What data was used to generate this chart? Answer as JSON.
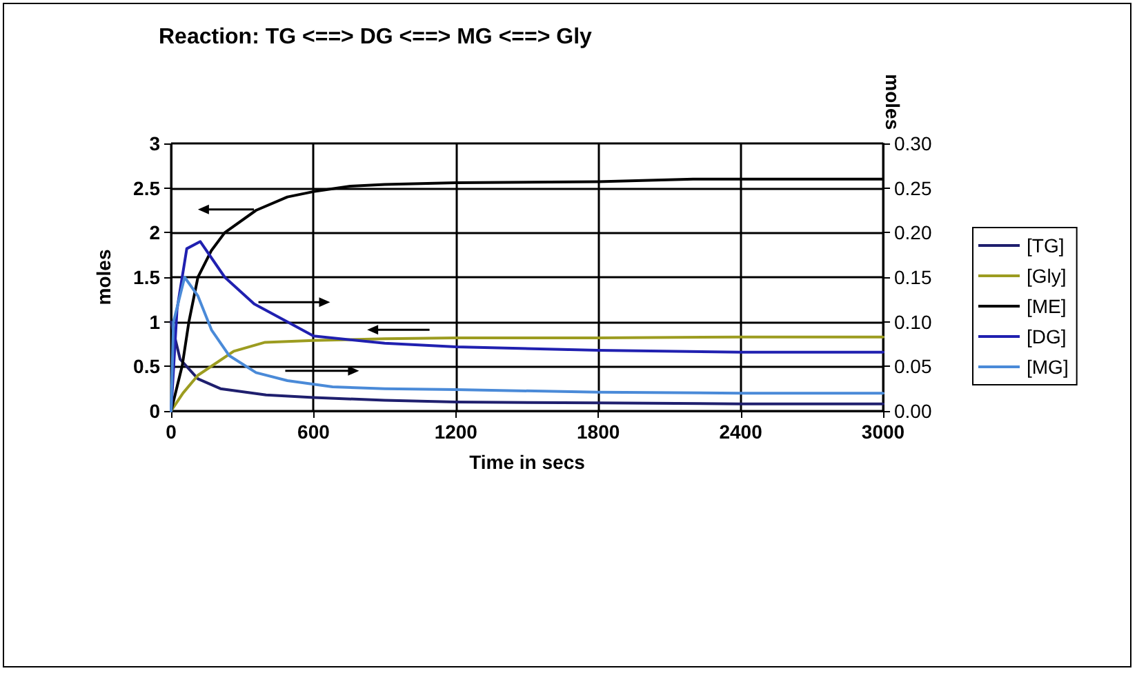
{
  "chart_data": {
    "type": "line",
    "title": "Reaction: TG <==> DG <==> MG <==> Gly",
    "xlabel": "Time in secs",
    "ylabel": "moles",
    "y2label": "moles",
    "xlim": [
      0,
      3000
    ],
    "xticks": [
      0,
      600,
      1200,
      1800,
      2400,
      3000
    ],
    "ylim": [
      0,
      3
    ],
    "yticks": [
      0,
      0.5,
      1,
      1.5,
      2,
      2.5,
      3
    ],
    "y2lim": [
      0,
      0.3
    ],
    "y2ticks": [
      {
        "value": 0,
        "label": "0.00"
      },
      {
        "value": 0.05,
        "label": "0.05"
      },
      {
        "value": 0.1,
        "label": "0.10"
      },
      {
        "value": 0.15,
        "label": "0.15"
      },
      {
        "value": 0.2,
        "label": "0.20"
      },
      {
        "value": 0.25,
        "label": "0.25"
      },
      {
        "value": 0.3,
        "label": "0.30"
      }
    ],
    "grid": true,
    "legend": "right",
    "marker": "none",
    "line_style": "solid",
    "series": [
      {
        "name": "[TG]",
        "color": "#1f1f6e",
        "x": [
          0,
          38,
          113,
          208,
          400,
          600,
          900,
          1200,
          1800,
          2400,
          3000
        ],
        "values": [
          1.0,
          0.58,
          0.36,
          0.25,
          0.18,
          0.15,
          0.12,
          0.1,
          0.09,
          0.08,
          0.08
        ]
      },
      {
        "name": "[Gly]",
        "color": "#9c9c20",
        "x": [
          0,
          50,
          113,
          264,
          396,
          600,
          900,
          1200,
          1800,
          2400,
          3000
        ],
        "values": [
          0,
          0.2,
          0.4,
          0.67,
          0.77,
          0.79,
          0.81,
          0.82,
          0.82,
          0.83,
          0.83
        ]
      },
      {
        "name": "[ME]",
        "color": "#000000",
        "x": [
          0,
          47,
          75,
          113,
          170,
          226,
          358,
          490,
          600,
          755,
          900,
          1200,
          1800,
          2200,
          3000
        ],
        "values": [
          0,
          0.51,
          1.0,
          1.5,
          1.8,
          2.0,
          2.25,
          2.4,
          2.46,
          2.52,
          2.54,
          2.56,
          2.57,
          2.6,
          2.6
        ]
      },
      {
        "name": "[DG]",
        "color": "#2020b0",
        "axis": "y2",
        "x": [
          0,
          25,
          66,
          123,
          226,
          350,
          490,
          600,
          900,
          1200,
          1800,
          2400,
          3000
        ],
        "values": [
          0,
          0.114,
          0.182,
          0.19,
          0.15,
          0.12,
          0.1,
          0.084,
          0.076,
          0.072,
          0.068,
          0.066,
          0.066
        ]
      },
      {
        "name": "[MG]",
        "color": "#4a8ad8",
        "axis": "y2",
        "x": [
          0,
          10,
          57,
          113,
          170,
          245,
          358,
          490,
          680,
          900,
          1200,
          1800,
          2400,
          3000
        ],
        "values": [
          0,
          0.1,
          0.15,
          0.129,
          0.091,
          0.062,
          0.043,
          0.034,
          0.027,
          0.025,
          0.024,
          0.021,
          0.02,
          0.02
        ]
      }
    ]
  }
}
